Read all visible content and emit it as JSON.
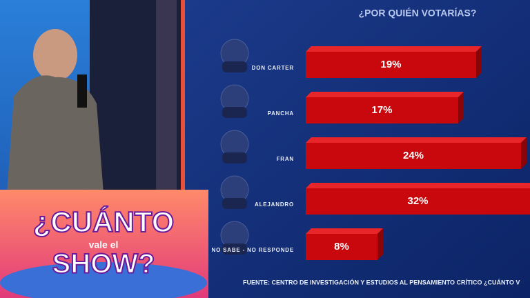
{
  "chart_data": {
    "type": "bar",
    "orientation": "horizontal",
    "title": "¿POR QUIÉN VOTARÍAS?",
    "categories": [
      "DON CARTER",
      "PANCHA",
      "FRAN",
      "ALEJANDRO",
      "NO SABE - NO RESPONDE"
    ],
    "values": [
      19,
      17,
      24,
      32,
      8
    ],
    "value_labels": [
      "19%",
      "17%",
      "24%",
      "32%",
      "8%"
    ],
    "color": "#c8080c",
    "source": "FUENTE: CENTRO DE INVESTIGACIÓN Y ESTUDIOS AL PENSAMIENTO CRÍTICO ¿CUÁNTO V"
  },
  "logo": {
    "line1": "¿CUÁNTO",
    "line2": "vale el",
    "line3": "SHOW?"
  }
}
